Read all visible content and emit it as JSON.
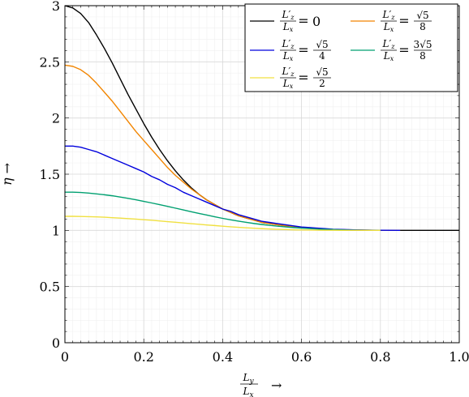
{
  "chart_data": {
    "type": "line",
    "xlabel_num": "L",
    "xlabel_num_sub": "y",
    "xlabel_den": "L",
    "xlabel_den_sub": "x",
    "xlabel_arrow": "→",
    "ylabel": "η →",
    "xlim": [
      0,
      1
    ],
    "ylim": [
      0,
      3
    ],
    "x_ticks": [
      0,
      0.2,
      0.4,
      0.6,
      0.8,
      1.0
    ],
    "x_tick_labels": [
      "0",
      "0.2",
      "0.4",
      "0.6",
      "0.8",
      "1.0"
    ],
    "y_ticks": [
      0,
      0.5,
      1,
      1.5,
      2,
      2.5,
      3
    ],
    "y_tick_labels": [
      "0",
      "0.5",
      "1",
      "1.5",
      "2",
      "2.5",
      "3"
    ],
    "grid": true,
    "legend_position": "top-right",
    "series": [
      {
        "name": "L′z/Lx = 0",
        "legend_num": "L′",
        "legend_num_sub": "z",
        "legend_den": "L",
        "legend_den_sub": "x",
        "legend_rhs": "0",
        "color": "#000000",
        "x": [
          0,
          0.02,
          0.04,
          0.06,
          0.08,
          0.1,
          0.12,
          0.14,
          0.16,
          0.18,
          0.2,
          0.22,
          0.24,
          0.26,
          0.28,
          0.3,
          0.32,
          0.34,
          0.36,
          0.38,
          0.4,
          0.42,
          0.44,
          0.46,
          0.48,
          0.5,
          0.52,
          0.54,
          0.56,
          0.58,
          0.6,
          0.62,
          0.64,
          0.66,
          0.68,
          0.7,
          0.72,
          0.74,
          0.76,
          0.78,
          0.8,
          0.85,
          0.9,
          0.95,
          1.0
        ],
        "y": [
          3,
          2.98,
          2.93,
          2.85,
          2.74,
          2.62,
          2.49,
          2.35,
          2.21,
          2.08,
          1.95,
          1.83,
          1.72,
          1.62,
          1.53,
          1.45,
          1.38,
          1.32,
          1.27,
          1.23,
          1.19,
          1.16,
          1.13,
          1.11,
          1.09,
          1.07,
          1.06,
          1.05,
          1.04,
          1.03,
          1.025,
          1.02,
          1.015,
          1.01,
          1.008,
          1.006,
          1.004,
          1.003,
          1.002,
          1.001,
          1.0,
          1.0,
          1.0,
          1.0,
          1.0
        ]
      },
      {
        "name": "L′z/Lx = √5/8",
        "legend_num": "L′",
        "legend_num_sub": "z",
        "legend_den": "L",
        "legend_den_sub": "x",
        "legend_rhs_num": "√5",
        "legend_rhs_den": "8",
        "color": "#f28500",
        "x": [
          0,
          0.02,
          0.04,
          0.06,
          0.08,
          0.1,
          0.12,
          0.14,
          0.16,
          0.18,
          0.2,
          0.22,
          0.24,
          0.26,
          0.28,
          0.3,
          0.32,
          0.34,
          0.36,
          0.38,
          0.4,
          0.42,
          0.44,
          0.46,
          0.48,
          0.5,
          0.52,
          0.54,
          0.56,
          0.58,
          0.6,
          0.62,
          0.64,
          0.66,
          0.68,
          0.7,
          0.72,
          0.74,
          0.76,
          0.78,
          0.8,
          0.85
        ],
        "y": [
          2.47,
          2.46,
          2.43,
          2.38,
          2.31,
          2.23,
          2.15,
          2.06,
          1.97,
          1.88,
          1.8,
          1.72,
          1.64,
          1.56,
          1.49,
          1.43,
          1.37,
          1.32,
          1.27,
          1.23,
          1.19,
          1.16,
          1.13,
          1.11,
          1.09,
          1.07,
          1.06,
          1.05,
          1.04,
          1.03,
          1.025,
          1.02,
          1.015,
          1.01,
          1.008,
          1.006,
          1.004,
          1.003,
          1.002,
          1.001,
          1.0,
          1.0
        ]
      },
      {
        "name": "L′z/Lx = √5/4",
        "legend_num": "L′",
        "legend_num_sub": "z",
        "legend_den": "L",
        "legend_den_sub": "x",
        "legend_rhs_num": "√5",
        "legend_rhs_den": "4",
        "color": "#0000dd",
        "x": [
          0,
          0.02,
          0.04,
          0.06,
          0.08,
          0.1,
          0.12,
          0.14,
          0.16,
          0.18,
          0.2,
          0.22,
          0.24,
          0.26,
          0.28,
          0.3,
          0.32,
          0.34,
          0.36,
          0.38,
          0.4,
          0.42,
          0.44,
          0.46,
          0.48,
          0.5,
          0.52,
          0.54,
          0.56,
          0.58,
          0.6,
          0.62,
          0.64,
          0.66,
          0.68,
          0.7,
          0.72,
          0.74,
          0.76,
          0.78,
          0.8,
          0.85
        ],
        "y": [
          1.75,
          1.75,
          1.74,
          1.72,
          1.7,
          1.67,
          1.64,
          1.61,
          1.58,
          1.55,
          1.52,
          1.48,
          1.45,
          1.41,
          1.38,
          1.34,
          1.31,
          1.28,
          1.25,
          1.22,
          1.19,
          1.17,
          1.14,
          1.12,
          1.1,
          1.08,
          1.07,
          1.06,
          1.05,
          1.04,
          1.03,
          1.025,
          1.02,
          1.015,
          1.01,
          1.008,
          1.006,
          1.004,
          1.003,
          1.002,
          1.001,
          1.0
        ]
      },
      {
        "name": "L′z/Lx = 3√5/8",
        "legend_num": "L′",
        "legend_num_sub": "z",
        "legend_den": "L",
        "legend_den_sub": "x",
        "legend_rhs_num": "3√5",
        "legend_rhs_den": "8",
        "color": "#00a070",
        "x": [
          0,
          0.02,
          0.04,
          0.06,
          0.08,
          0.1,
          0.12,
          0.14,
          0.16,
          0.18,
          0.2,
          0.22,
          0.24,
          0.26,
          0.28,
          0.3,
          0.32,
          0.34,
          0.36,
          0.38,
          0.4,
          0.42,
          0.44,
          0.46,
          0.48,
          0.5,
          0.52,
          0.54,
          0.56,
          0.58,
          0.6,
          0.62,
          0.64,
          0.66,
          0.68,
          0.7,
          0.72,
          0.74,
          0.76,
          0.78,
          0.8
        ],
        "y": [
          1.34,
          1.34,
          1.337,
          1.332,
          1.325,
          1.317,
          1.308,
          1.297,
          1.285,
          1.272,
          1.258,
          1.244,
          1.229,
          1.214,
          1.198,
          1.182,
          1.166,
          1.151,
          1.136,
          1.121,
          1.107,
          1.094,
          1.082,
          1.071,
          1.061,
          1.052,
          1.044,
          1.037,
          1.031,
          1.025,
          1.02,
          1.016,
          1.012,
          1.009,
          1.007,
          1.005,
          1.003,
          1.002,
          1.001,
          1.0,
          1.0
        ]
      },
      {
        "name": "L′z/Lx = √5/2",
        "legend_num": "L′",
        "legend_num_sub": "z",
        "legend_den": "L",
        "legend_den_sub": "x",
        "legend_rhs_num": "√5",
        "legend_rhs_den": "2",
        "color": "#f0e040",
        "x": [
          0,
          0.02,
          0.04,
          0.06,
          0.08,
          0.1,
          0.12,
          0.14,
          0.16,
          0.18,
          0.2,
          0.22,
          0.24,
          0.26,
          0.28,
          0.3,
          0.32,
          0.34,
          0.36,
          0.38,
          0.4,
          0.42,
          0.44,
          0.46,
          0.48,
          0.5,
          0.52,
          0.54,
          0.56,
          0.58,
          0.6,
          0.62,
          0.64,
          0.66,
          0.68,
          0.7,
          0.72,
          0.74,
          0.76,
          0.78,
          0.8
        ],
        "y": [
          1.125,
          1.125,
          1.124,
          1.122,
          1.12,
          1.117,
          1.113,
          1.109,
          1.105,
          1.1,
          1.095,
          1.09,
          1.084,
          1.078,
          1.072,
          1.066,
          1.06,
          1.054,
          1.048,
          1.043,
          1.037,
          1.032,
          1.027,
          1.023,
          1.019,
          1.015,
          1.012,
          1.009,
          1.007,
          1.005,
          1.004,
          1.003,
          1.002,
          1.001,
          1.001,
          1.0,
          1.0,
          1.0,
          1.0,
          1.0,
          1.0
        ]
      }
    ]
  }
}
